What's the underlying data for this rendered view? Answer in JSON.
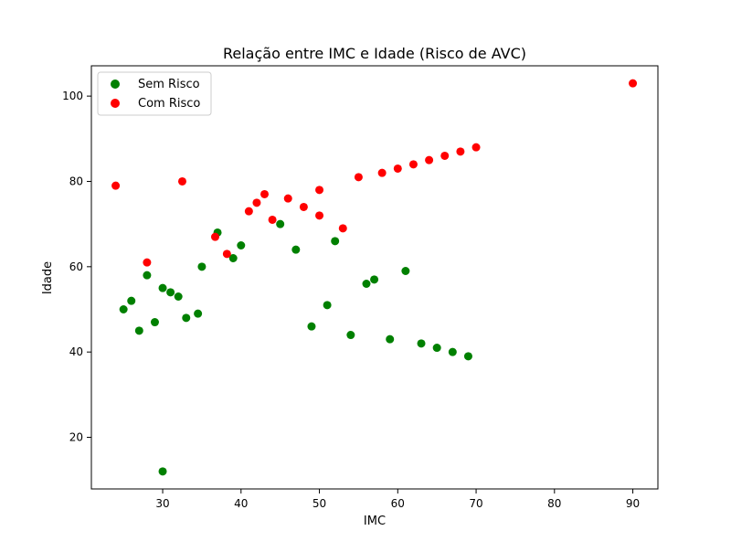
{
  "chart_data": {
    "type": "scatter",
    "title": "Relação entre IMC e Idade (Risco de AVC)",
    "xlabel": "IMC",
    "ylabel": "Idade",
    "xlim": [
      20.9,
      93.2
    ],
    "ylim": [
      7.9,
      107.1
    ],
    "xticks": [
      30,
      40,
      50,
      60,
      70,
      80,
      90
    ],
    "yticks": [
      20,
      40,
      60,
      80,
      100
    ],
    "grid": false,
    "legend": {
      "placement": "top-left"
    },
    "series": [
      {
        "name": "Sem Risco",
        "color": "#008000",
        "points": [
          [
            25,
            50
          ],
          [
            26,
            52
          ],
          [
            27,
            45
          ],
          [
            28,
            58
          ],
          [
            29,
            47
          ],
          [
            30,
            55
          ],
          [
            30,
            12
          ],
          [
            31,
            54
          ],
          [
            32,
            53
          ],
          [
            33,
            48
          ],
          [
            34.5,
            49
          ],
          [
            35,
            60
          ],
          [
            37,
            68
          ],
          [
            39,
            62
          ],
          [
            40,
            65
          ],
          [
            45,
            70
          ],
          [
            47,
            64
          ],
          [
            49,
            46
          ],
          [
            51,
            51
          ],
          [
            52,
            66
          ],
          [
            54,
            44
          ],
          [
            56,
            56
          ],
          [
            57,
            57
          ],
          [
            59,
            43
          ],
          [
            61,
            59
          ],
          [
            63,
            42
          ],
          [
            65,
            41
          ],
          [
            67,
            40
          ],
          [
            69,
            39
          ]
        ]
      },
      {
        "name": "Com Risco",
        "color": "#ff0000",
        "points": [
          [
            24,
            79
          ],
          [
            28,
            61
          ],
          [
            32.5,
            80
          ],
          [
            36.7,
            67
          ],
          [
            38.2,
            63
          ],
          [
            41,
            73
          ],
          [
            42,
            75
          ],
          [
            43,
            77
          ],
          [
            44,
            71
          ],
          [
            46,
            76
          ],
          [
            48,
            74
          ],
          [
            50,
            78
          ],
          [
            50,
            72
          ],
          [
            53,
            69
          ],
          [
            55,
            81
          ],
          [
            58,
            82
          ],
          [
            60,
            83
          ],
          [
            62,
            84
          ],
          [
            64,
            85
          ],
          [
            66,
            86
          ],
          [
            68,
            87
          ],
          [
            70,
            88
          ],
          [
            90,
            103
          ]
        ]
      }
    ]
  }
}
